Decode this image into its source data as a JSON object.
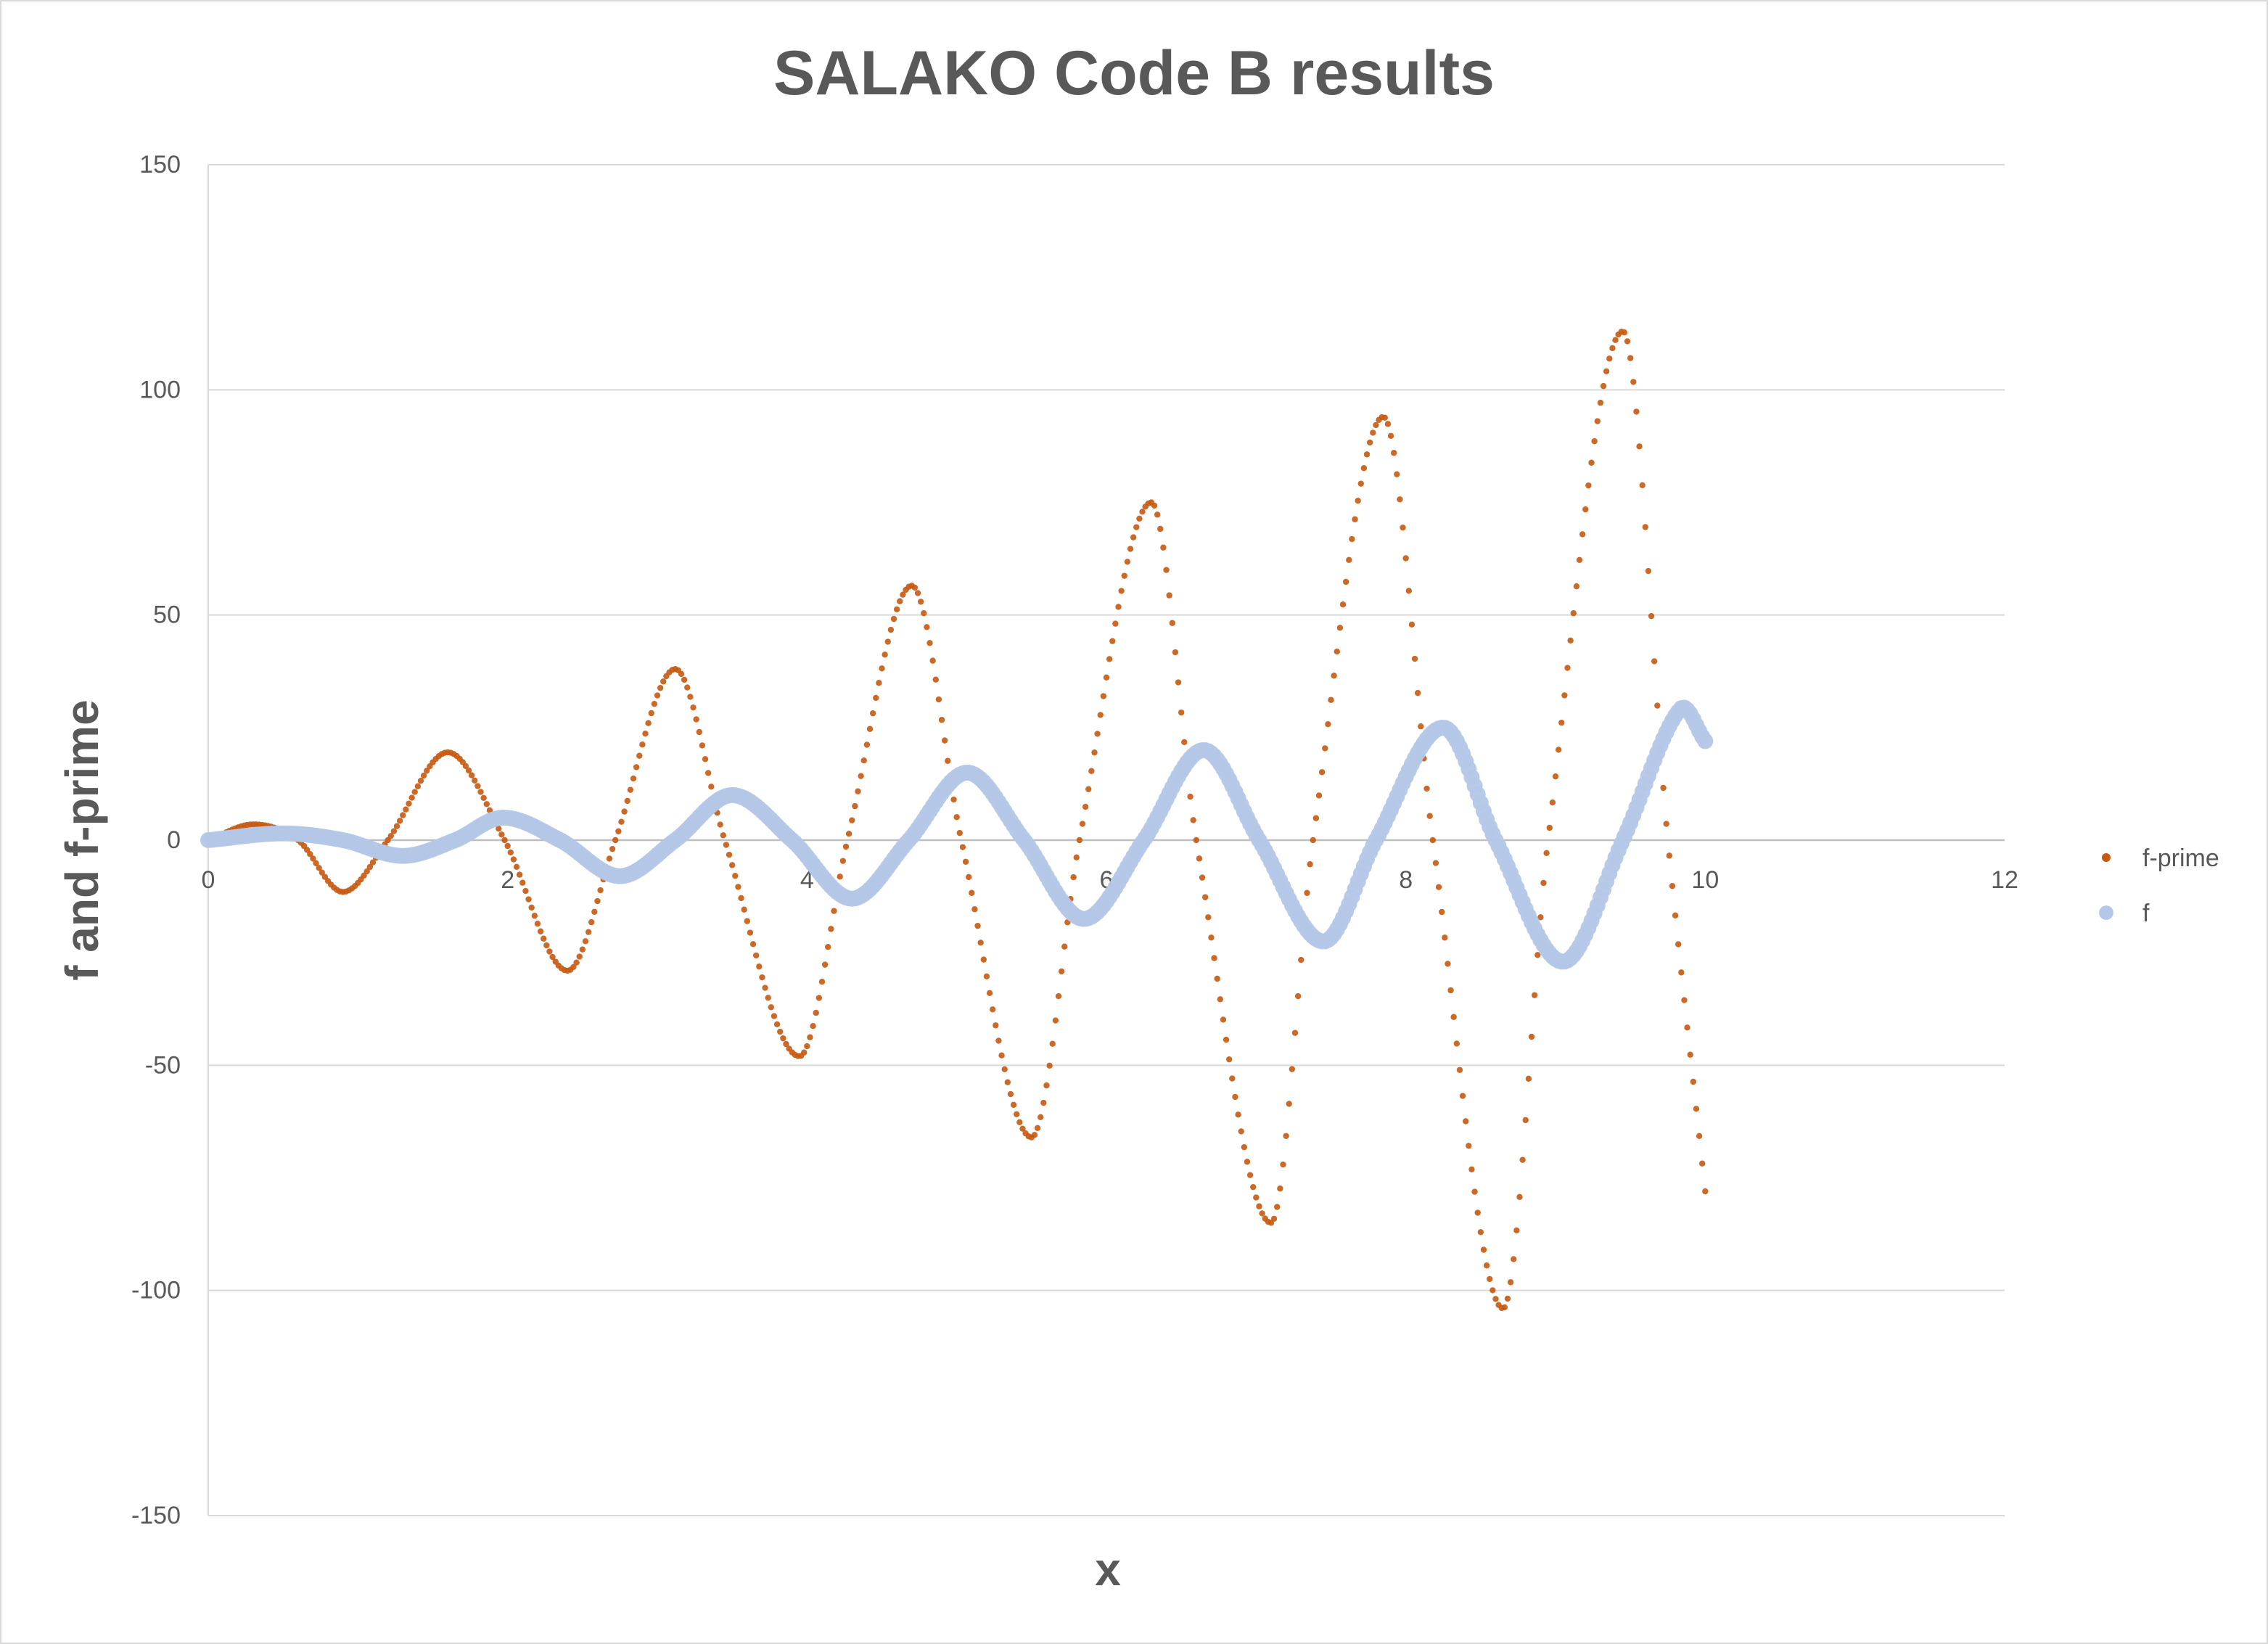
{
  "chart_data": {
    "type": "scatter",
    "title": "SALAKO  Code B results",
    "xlabel": "x",
    "ylabel": "f and f-prime",
    "xlim": [
      0,
      12
    ],
    "ylim": [
      -150,
      150
    ],
    "x_ticks": [
      0,
      2,
      4,
      6,
      8,
      10,
      12
    ],
    "y_ticks": [
      -150,
      -100,
      -50,
      0,
      50,
      100,
      150
    ],
    "x_tick_labels": [
      "0",
      "2",
      "4",
      "6",
      "8",
      "10",
      "12"
    ],
    "y_tick_labels": [
      "-150",
      "-100",
      "-50",
      "0",
      "50",
      "100",
      "150"
    ],
    "grid": "horizontal",
    "legend_position": "right",
    "sample_spacing": 0.02,
    "series": [
      {
        "name": "f-prime",
        "color": "#C55A11",
        "marker": "small-dot",
        "points": [
          [
            0,
            0
          ],
          [
            0.3,
            3.5
          ],
          [
            0.6,
            0
          ],
          [
            0.9,
            -11.5
          ],
          [
            1.2,
            0
          ],
          [
            1.6,
            19.5
          ],
          [
            1.98,
            0
          ],
          [
            2.4,
            -29
          ],
          [
            2.72,
            0
          ],
          [
            3.12,
            38
          ],
          [
            3.45,
            0
          ],
          [
            3.95,
            -48
          ],
          [
            4.27,
            0
          ],
          [
            4.7,
            56.5
          ],
          [
            5.03,
            0
          ],
          [
            5.5,
            -66
          ],
          [
            5.82,
            0
          ],
          [
            6.3,
            75
          ],
          [
            6.6,
            0
          ],
          [
            7.1,
            -85
          ],
          [
            7.38,
            0
          ],
          [
            7.85,
            94
          ],
          [
            8.18,
            0
          ],
          [
            8.65,
            -104
          ],
          [
            8.95,
            0
          ],
          [
            9.45,
            113
          ],
          [
            9.75,
            0
          ],
          [
            10.0,
            -78
          ]
        ]
      },
      {
        "name": "f",
        "color": "#B4C7E7",
        "marker": "large-dot",
        "points": [
          [
            0,
            0
          ],
          [
            0.5,
            1.5
          ],
          [
            0.9,
            0
          ],
          [
            1.3,
            -3.5
          ],
          [
            1.65,
            0
          ],
          [
            1.97,
            5
          ],
          [
            2.35,
            0
          ],
          [
            2.75,
            -8
          ],
          [
            3.12,
            0
          ],
          [
            3.5,
            10
          ],
          [
            3.9,
            0
          ],
          [
            4.3,
            -13
          ],
          [
            4.68,
            0
          ],
          [
            5.07,
            15
          ],
          [
            5.45,
            0
          ],
          [
            5.85,
            -17.5
          ],
          [
            6.25,
            0
          ],
          [
            6.65,
            20
          ],
          [
            7.02,
            0
          ],
          [
            7.45,
            -22.5
          ],
          [
            7.8,
            0
          ],
          [
            8.25,
            25
          ],
          [
            8.6,
            0
          ],
          [
            9.05,
            -27
          ],
          [
            9.45,
            0
          ],
          [
            9.83,
            29
          ],
          [
            10.0,
            22
          ]
        ]
      }
    ]
  }
}
